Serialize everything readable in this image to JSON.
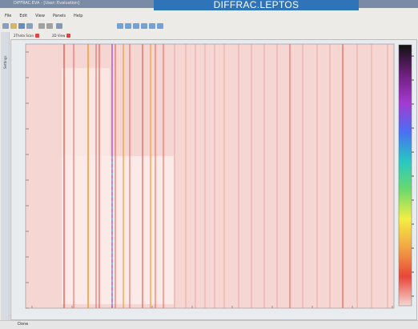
{
  "window": {
    "title": "DIFFRAC.EVA - [User: Evaluation]",
    "brand_label": "DIFFRAC.LEPTOS",
    "title_color": "#7a8ba6",
    "brand_color": "#2f73b8"
  },
  "menu": {
    "items": [
      "File",
      "Edit",
      "View",
      "Panels",
      "Help"
    ]
  },
  "toolbar": {
    "icons": [
      "new-icon",
      "open-icon",
      "save-icon",
      "print-icon",
      "cut-icon",
      "copy-icon",
      "undo-icon",
      "zoom-icon",
      "rotate-icon",
      "select-icon",
      "grid-icon",
      "pan-icon",
      "refresh-icon"
    ]
  },
  "side_panel": {
    "label": "Settings"
  },
  "tabs": [
    {
      "label": "2Theta Scan",
      "close_icon": "close-icon"
    },
    {
      "label": "2D View",
      "close_icon": "close-icon"
    }
  ],
  "status": {
    "text": "Done"
  },
  "plot": {
    "background": "#f6d6d2",
    "colorbar": [
      "#111111",
      "#6b1f7a",
      "#a43ad0",
      "#4a6ff3",
      "#27c7c3",
      "#6bd96c",
      "#f4ee44",
      "#f2a444",
      "#e8453a",
      "#f6d6d2"
    ]
  }
}
